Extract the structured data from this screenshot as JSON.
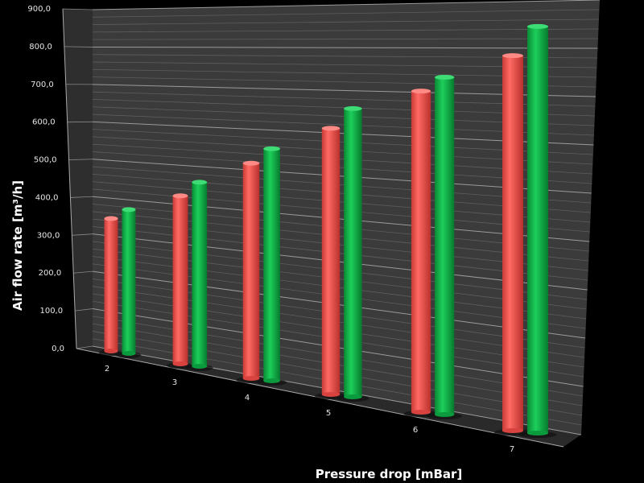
{
  "chart_data": {
    "type": "bar",
    "style": "3d-cylinder",
    "title": "",
    "xlabel": "Pressure drop [mBar]",
    "ylabel": "Air flow rate [m³/h]",
    "categories": [
      "2",
      "3",
      "4",
      "5",
      "6",
      "7"
    ],
    "ylim": [
      0,
      900
    ],
    "yticks": [
      "0,0",
      "100,0",
      "200,0",
      "300,0",
      "400,0",
      "500,0",
      "600,0",
      "700,0",
      "800,0",
      "900,0"
    ],
    "grid": true,
    "legend": "none",
    "series": [
      {
        "color": "#f0524e",
        "values": [
          350,
          420,
          510,
          600,
          690,
          770
        ]
      },
      {
        "color": "#12b24a",
        "values": [
          380,
          460,
          550,
          650,
          725,
          835
        ]
      }
    ],
    "background": "#000000",
    "wall_color": "#3a3a3a"
  }
}
